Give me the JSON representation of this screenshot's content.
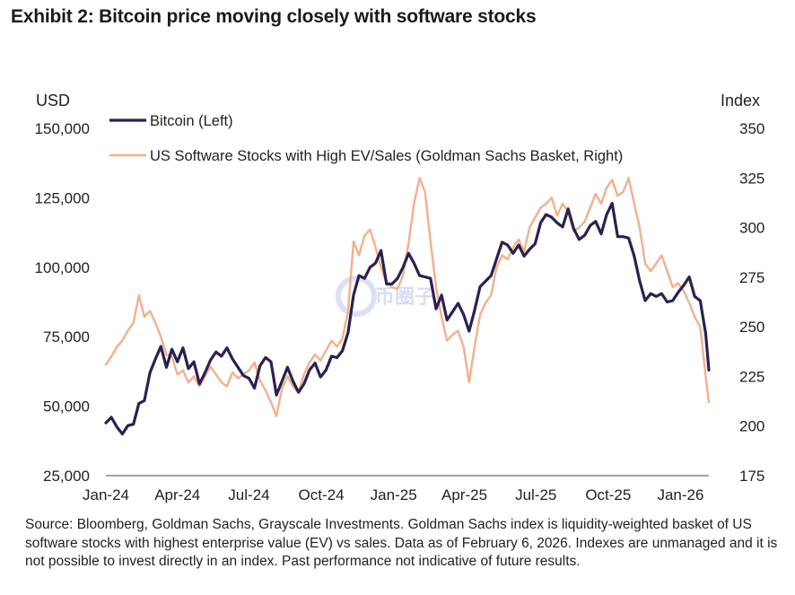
{
  "title": "Exhibit 2: Bitcoin price moving closely with software stocks",
  "source_note": "Source: Bloomberg, Goldman Sachs, Grayscale Investments. Goldman Sachs index is liquidity-weighted basket of US software stocks with highest enterprise value (EV) vs sales. Data as of February 6, 2026. Indexes are unmanaged and it is not possible to invest directly in an index. Past performance not indicative of future results.",
  "watermark": "币圈子",
  "chart_data": {
    "type": "line",
    "left_axis": {
      "unit": "USD",
      "ticks": [
        "25,000",
        "50,000",
        "75,000",
        "100,000",
        "125,000",
        "150,000"
      ],
      "range": [
        25000,
        150000
      ]
    },
    "right_axis": {
      "unit": "Index",
      "ticks": [
        "175",
        "200",
        "225",
        "250",
        "275",
        "300",
        "325",
        "350"
      ],
      "range": [
        175,
        350
      ]
    },
    "x_ticks": [
      "Jan-24",
      "Apr-24",
      "Jul-24",
      "Oct-24",
      "Jan-25",
      "Apr-25",
      "Jul-25",
      "Oct-25",
      "Jan-26"
    ],
    "x_range": [
      "2024-01-01",
      "2026-02-06"
    ],
    "grid": false,
    "legend_position": "top",
    "series": [
      {
        "name": "Bitcoin (Left)",
        "axis": "left",
        "color": "#2b2150",
        "points": [
          [
            "2024-01-01",
            44000
          ],
          [
            "2024-01-08",
            46000
          ],
          [
            "2024-01-15",
            42500
          ],
          [
            "2024-01-22",
            40000
          ],
          [
            "2024-01-29",
            43000
          ],
          [
            "2024-02-05",
            43500
          ],
          [
            "2024-02-12",
            51000
          ],
          [
            "2024-02-19",
            52000
          ],
          [
            "2024-02-26",
            62000
          ],
          [
            "2024-03-04",
            67000
          ],
          [
            "2024-03-11",
            71500
          ],
          [
            "2024-03-18",
            64000
          ],
          [
            "2024-03-25",
            70500
          ],
          [
            "2024-04-01",
            66000
          ],
          [
            "2024-04-08",
            71000
          ],
          [
            "2024-04-15",
            63500
          ],
          [
            "2024-04-22",
            66000
          ],
          [
            "2024-04-29",
            58000
          ],
          [
            "2024-05-06",
            62000
          ],
          [
            "2024-05-13",
            66500
          ],
          [
            "2024-05-20",
            69500
          ],
          [
            "2024-05-27",
            68000
          ],
          [
            "2024-06-03",
            71000
          ],
          [
            "2024-06-10",
            67000
          ],
          [
            "2024-06-17",
            64000
          ],
          [
            "2024-06-24",
            61000
          ],
          [
            "2024-07-01",
            60000
          ],
          [
            "2024-07-08",
            56500
          ],
          [
            "2024-07-15",
            64500
          ],
          [
            "2024-07-22",
            67500
          ],
          [
            "2024-07-29",
            66000
          ],
          [
            "2024-08-05",
            54000
          ],
          [
            "2024-08-12",
            59000
          ],
          [
            "2024-08-19",
            64000
          ],
          [
            "2024-08-26",
            59000
          ],
          [
            "2024-09-02",
            55000
          ],
          [
            "2024-09-09",
            58000
          ],
          [
            "2024-09-16",
            63000
          ],
          [
            "2024-09-23",
            65500
          ],
          [
            "2024-09-30",
            60500
          ],
          [
            "2024-10-07",
            63000
          ],
          [
            "2024-10-14",
            68000
          ],
          [
            "2024-10-21",
            67500
          ],
          [
            "2024-10-28",
            70000
          ],
          [
            "2024-11-04",
            76500
          ],
          [
            "2024-11-11",
            90000
          ],
          [
            "2024-11-18",
            97000
          ],
          [
            "2024-11-25",
            96000
          ],
          [
            "2024-12-02",
            100000
          ],
          [
            "2024-12-09",
            101500
          ],
          [
            "2024-12-16",
            106000
          ],
          [
            "2024-12-23",
            94000
          ],
          [
            "2024-12-30",
            94000
          ],
          [
            "2025-01-06",
            96000
          ],
          [
            "2025-01-13",
            100000
          ],
          [
            "2025-01-20",
            105000
          ],
          [
            "2025-01-27",
            101500
          ],
          [
            "2025-02-03",
            97000
          ],
          [
            "2025-02-10",
            96500
          ],
          [
            "2025-02-17",
            96000
          ],
          [
            "2025-02-24",
            85000
          ],
          [
            "2025-03-03",
            90000
          ],
          [
            "2025-03-10",
            81000
          ],
          [
            "2025-03-17",
            84000
          ],
          [
            "2025-03-24",
            87000
          ],
          [
            "2025-03-31",
            83000
          ],
          [
            "2025-04-07",
            77000
          ],
          [
            "2025-04-14",
            84500
          ],
          [
            "2025-04-21",
            93000
          ],
          [
            "2025-04-28",
            95000
          ],
          [
            "2025-05-05",
            97000
          ],
          [
            "2025-05-12",
            103000
          ],
          [
            "2025-05-19",
            109000
          ],
          [
            "2025-05-26",
            108000
          ],
          [
            "2025-06-02",
            105000
          ],
          [
            "2025-06-09",
            108000
          ],
          [
            "2025-06-16",
            104000
          ],
          [
            "2025-06-23",
            106500
          ],
          [
            "2025-06-30",
            108500
          ],
          [
            "2025-07-07",
            116000
          ],
          [
            "2025-07-14",
            119000
          ],
          [
            "2025-07-21",
            118000
          ],
          [
            "2025-07-28",
            116000
          ],
          [
            "2025-08-04",
            114500
          ],
          [
            "2025-08-11",
            121000
          ],
          [
            "2025-08-18",
            114000
          ],
          [
            "2025-08-25",
            110000
          ],
          [
            "2025-09-01",
            111500
          ],
          [
            "2025-09-08",
            115000
          ],
          [
            "2025-09-15",
            116500
          ],
          [
            "2025-09-22",
            112000
          ],
          [
            "2025-09-29",
            119000
          ],
          [
            "2025-10-06",
            123000
          ],
          [
            "2025-10-13",
            111000
          ],
          [
            "2025-10-20",
            111000
          ],
          [
            "2025-10-27",
            110500
          ],
          [
            "2025-11-03",
            104000
          ],
          [
            "2025-11-10",
            95000
          ],
          [
            "2025-11-17",
            88000
          ],
          [
            "2025-11-24",
            90500
          ],
          [
            "2025-12-01",
            89500
          ],
          [
            "2025-12-08",
            90500
          ],
          [
            "2025-12-15",
            87500
          ],
          [
            "2025-12-22",
            88000
          ],
          [
            "2025-12-29",
            91000
          ],
          [
            "2026-01-05",
            93500
          ],
          [
            "2026-01-12",
            96500
          ],
          [
            "2026-01-19",
            89500
          ],
          [
            "2026-01-26",
            88000
          ],
          [
            "2026-02-02",
            76000
          ],
          [
            "2026-02-06",
            63000
          ]
        ]
      },
      {
        "name": "US Software Stocks with High EV/Sales (Goldman Sachs Basket, Right)",
        "axis": "right",
        "color": "#f2b08e",
        "points": [
          [
            "2024-01-01",
            231
          ],
          [
            "2024-01-08",
            235
          ],
          [
            "2024-01-15",
            240
          ],
          [
            "2024-01-22",
            243
          ],
          [
            "2024-01-29",
            248
          ],
          [
            "2024-02-05",
            252
          ],
          [
            "2024-02-12",
            266
          ],
          [
            "2024-02-19",
            255
          ],
          [
            "2024-02-26",
            258
          ],
          [
            "2024-03-04",
            252
          ],
          [
            "2024-03-11",
            245
          ],
          [
            "2024-03-18",
            236
          ],
          [
            "2024-03-25",
            235
          ],
          [
            "2024-04-01",
            226
          ],
          [
            "2024-04-08",
            228
          ],
          [
            "2024-04-15",
            222
          ],
          [
            "2024-04-22",
            225
          ],
          [
            "2024-04-29",
            220
          ],
          [
            "2024-05-06",
            225
          ],
          [
            "2024-05-13",
            230
          ],
          [
            "2024-05-20",
            226
          ],
          [
            "2024-05-27",
            222
          ],
          [
            "2024-06-03",
            220
          ],
          [
            "2024-06-10",
            227
          ],
          [
            "2024-06-17",
            224
          ],
          [
            "2024-06-24",
            226
          ],
          [
            "2024-07-01",
            228
          ],
          [
            "2024-07-08",
            232
          ],
          [
            "2024-07-15",
            223
          ],
          [
            "2024-07-22",
            218
          ],
          [
            "2024-07-29",
            212
          ],
          [
            "2024-08-05",
            205
          ],
          [
            "2024-08-12",
            219
          ],
          [
            "2024-08-19",
            225
          ],
          [
            "2024-08-26",
            220
          ],
          [
            "2024-09-02",
            217
          ],
          [
            "2024-09-09",
            226
          ],
          [
            "2024-09-16",
            232
          ],
          [
            "2024-09-23",
            236
          ],
          [
            "2024-09-30",
            233
          ],
          [
            "2024-10-07",
            238
          ],
          [
            "2024-10-14",
            243
          ],
          [
            "2024-10-21",
            240
          ],
          [
            "2024-10-28",
            244
          ],
          [
            "2024-11-04",
            258
          ],
          [
            "2024-11-11",
            293
          ],
          [
            "2024-11-18",
            286
          ],
          [
            "2024-11-25",
            296
          ],
          [
            "2024-12-02",
            299
          ],
          [
            "2024-12-09",
            290
          ],
          [
            "2024-12-16",
            280
          ],
          [
            "2024-12-23",
            272
          ],
          [
            "2024-12-30",
            270
          ],
          [
            "2025-01-06",
            269
          ],
          [
            "2025-01-13",
            276
          ],
          [
            "2025-01-20",
            292
          ],
          [
            "2025-01-27",
            312
          ],
          [
            "2025-02-03",
            325
          ],
          [
            "2025-02-10",
            318
          ],
          [
            "2025-02-17",
            293
          ],
          [
            "2025-02-24",
            270
          ],
          [
            "2025-03-03",
            255
          ],
          [
            "2025-03-10",
            243
          ],
          [
            "2025-03-17",
            246
          ],
          [
            "2025-03-24",
            248
          ],
          [
            "2025-03-31",
            240
          ],
          [
            "2025-04-07",
            222
          ],
          [
            "2025-04-14",
            240
          ],
          [
            "2025-04-21",
            256
          ],
          [
            "2025-04-28",
            262
          ],
          [
            "2025-05-05",
            266
          ],
          [
            "2025-05-12",
            280
          ],
          [
            "2025-05-19",
            286
          ],
          [
            "2025-05-26",
            284
          ],
          [
            "2025-06-02",
            290
          ],
          [
            "2025-06-09",
            294
          ],
          [
            "2025-06-16",
            288
          ],
          [
            "2025-06-23",
            300
          ],
          [
            "2025-06-30",
            305
          ],
          [
            "2025-07-07",
            310
          ],
          [
            "2025-07-14",
            312
          ],
          [
            "2025-07-21",
            315
          ],
          [
            "2025-07-28",
            306
          ],
          [
            "2025-08-04",
            312
          ],
          [
            "2025-08-11",
            308
          ],
          [
            "2025-08-18",
            298
          ],
          [
            "2025-08-25",
            300
          ],
          [
            "2025-09-01",
            303
          ],
          [
            "2025-09-08",
            310
          ],
          [
            "2025-09-15",
            317
          ],
          [
            "2025-09-22",
            312
          ],
          [
            "2025-09-29",
            320
          ],
          [
            "2025-10-06",
            324
          ],
          [
            "2025-10-13",
            316
          ],
          [
            "2025-10-20",
            318
          ],
          [
            "2025-10-27",
            325
          ],
          [
            "2025-11-03",
            312
          ],
          [
            "2025-11-10",
            300
          ],
          [
            "2025-11-17",
            282
          ],
          [
            "2025-11-24",
            278
          ],
          [
            "2025-12-01",
            282
          ],
          [
            "2025-12-08",
            286
          ],
          [
            "2025-12-15",
            278
          ],
          [
            "2025-12-22",
            270
          ],
          [
            "2025-12-29",
            272
          ],
          [
            "2026-01-05",
            268
          ],
          [
            "2026-01-12",
            262
          ],
          [
            "2026-01-19",
            255
          ],
          [
            "2026-01-26",
            250
          ],
          [
            "2026-02-02",
            225
          ],
          [
            "2026-02-06",
            212
          ]
        ]
      }
    ]
  }
}
